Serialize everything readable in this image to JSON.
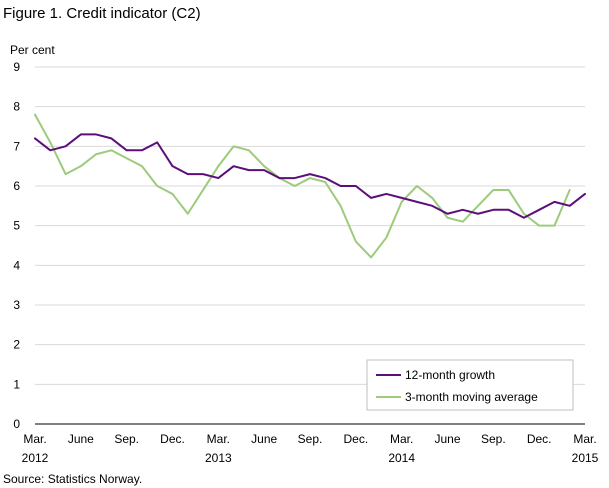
{
  "title": "Figure 1. Credit indicator (C2)",
  "source": "Source: Statistics Norway.",
  "colors": {
    "series_12m": "#5c0f7a",
    "series_3m": "#9ccb7c",
    "grid": "#d9d9d9",
    "axis": "#000000"
  },
  "chart_data": {
    "type": "line",
    "ylabel": "Per cent",
    "ylim": [
      0,
      9
    ],
    "yticks": [
      0,
      1,
      2,
      3,
      4,
      5,
      6,
      7,
      8,
      9
    ],
    "grid": true,
    "legend": "bottom-right",
    "x_tick_labels": [
      {
        "index": 0,
        "line1": "Mar.",
        "line2": "2012"
      },
      {
        "index": 3,
        "line1": "June",
        "line2": ""
      },
      {
        "index": 6,
        "line1": "Sep.",
        "line2": ""
      },
      {
        "index": 9,
        "line1": "Dec.",
        "line2": ""
      },
      {
        "index": 12,
        "line1": "Mar.",
        "line2": "2013"
      },
      {
        "index": 15,
        "line1": "June",
        "line2": ""
      },
      {
        "index": 18,
        "line1": "Sep.",
        "line2": ""
      },
      {
        "index": 21,
        "line1": "Dec.",
        "line2": ""
      },
      {
        "index": 24,
        "line1": "Mar.",
        "line2": "2014"
      },
      {
        "index": 27,
        "line1": "June",
        "line2": ""
      },
      {
        "index": 30,
        "line1": "Sep.",
        "line2": ""
      },
      {
        "index": 33,
        "line1": "Dec.",
        "line2": ""
      },
      {
        "index": 36,
        "line1": "Mar.",
        "line2": "2015"
      }
    ],
    "x": [
      "2012-03",
      "2012-04",
      "2012-05",
      "2012-06",
      "2012-07",
      "2012-08",
      "2012-09",
      "2012-10",
      "2012-11",
      "2012-12",
      "2013-01",
      "2013-02",
      "2013-03",
      "2013-04",
      "2013-05",
      "2013-06",
      "2013-07",
      "2013-08",
      "2013-09",
      "2013-10",
      "2013-11",
      "2013-12",
      "2014-01",
      "2014-02",
      "2014-03",
      "2014-04",
      "2014-05",
      "2014-06",
      "2014-07",
      "2014-08",
      "2014-09",
      "2014-10",
      "2014-11",
      "2014-12",
      "2015-01",
      "2015-02",
      "2015-03"
    ],
    "series": [
      {
        "name": "12-month growth",
        "color": "#5c0f7a",
        "values": [
          7.2,
          6.9,
          7.0,
          7.3,
          7.3,
          7.2,
          6.9,
          6.9,
          7.1,
          6.5,
          6.3,
          6.3,
          6.2,
          6.5,
          6.4,
          6.4,
          6.2,
          6.2,
          6.3,
          6.2,
          6.0,
          6.0,
          5.7,
          5.8,
          5.7,
          5.6,
          5.5,
          5.3,
          5.4,
          5.3,
          5.4,
          5.4,
          5.2,
          5.4,
          5.6,
          5.5,
          5.8
        ]
      },
      {
        "name": "3-month moving average",
        "color": "#9ccb7c",
        "values": [
          7.8,
          7.1,
          6.3,
          6.5,
          6.8,
          6.9,
          6.7,
          6.5,
          6.0,
          5.8,
          5.3,
          5.9,
          6.5,
          7.0,
          6.9,
          6.5,
          6.2,
          6.0,
          6.2,
          6.1,
          5.5,
          4.6,
          4.2,
          4.7,
          5.6,
          6.0,
          5.7,
          5.2,
          5.1,
          5.5,
          5.9,
          5.9,
          5.3,
          5.0,
          5.0,
          5.9,
          null
        ]
      }
    ]
  }
}
